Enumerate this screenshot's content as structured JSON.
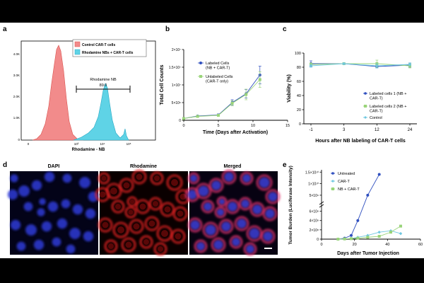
{
  "panels": {
    "a": {
      "letter": "a",
      "legend": [
        "Control CAR-T cells",
        "Rhodamine NBs + CAR-T cells"
      ],
      "legend_colors": [
        "#f28b8b",
        "#5fd3e6"
      ],
      "gate_label": "Rhodamine NB",
      "gate_value": "89.0",
      "y_ticks": [
        "4.0K",
        "3.0K",
        "2.0K",
        "1.0K",
        "0"
      ],
      "x_ticks": [
        "0",
        "10³",
        "10⁴",
        "10⁵"
      ],
      "x_label": "Rhodamine - NB"
    },
    "b": {
      "letter": "b",
      "y_label": "Total Cell Counts",
      "x_label": "Time (Days after Activation)",
      "y_ticks": [
        "0",
        "5×10⁶",
        "1×10⁷",
        "1.5×10⁷",
        "2×10⁷"
      ],
      "x_ticks": [
        "0",
        "5",
        "10",
        "15"
      ],
      "legend": [
        "Labeled Cells (NB + CAR-T)",
        "Unlabeled Cells (CAR-T only)"
      ]
    },
    "c": {
      "letter": "c",
      "y_label": "Viability (%)",
      "x_label": "Hours after NB labeling of CAR-T cells",
      "y_ticks": [
        "0",
        "20",
        "40",
        "60",
        "80",
        "100"
      ],
      "x_ticks": [
        "-1",
        "3",
        "12",
        "24"
      ],
      "legend": [
        "Labeled cells 1 (NB + CAR-T)",
        "Labeled cells 2 (NB + CAR-T)",
        "Control"
      ]
    },
    "d": {
      "letter": "d",
      "titles": [
        "DAPI",
        "Rhodamine",
        "Merged"
      ]
    },
    "e": {
      "letter": "e",
      "y_label": "Tumor Burden (Luciferase Intensity)",
      "x_label": "Days after Tumor Injection",
      "y_ticks_upper": [
        "1.5×10¹⁰",
        "1×10¹⁰",
        "5×10⁹"
      ],
      "y_ticks_lower": [
        "6×10⁸",
        "4×10⁸",
        "2×10⁸",
        "0"
      ],
      "x_ticks": [
        "0",
        "20",
        "40",
        "60"
      ],
      "legend": [
        "Untreated",
        "CAR-T",
        "NB + CAR-T"
      ]
    }
  },
  "chart_data": [
    {
      "panel": "b",
      "type": "line",
      "xlim": [
        0,
        15
      ],
      "ylim": [
        0,
        20000000
      ],
      "series": [
        {
          "name": "Labeled Cells (NB + CAR-T)",
          "color": "#2f4fbf",
          "x": [
            0,
            2,
            5,
            7,
            9,
            11
          ],
          "y": [
            500000,
            1200000,
            1500000,
            5000000,
            7500000,
            12800000
          ],
          "err": [
            0,
            200000,
            300000,
            800000,
            1200000,
            2500000
          ]
        },
        {
          "name": "Unlabeled Cells (CAR-T only)",
          "color": "#9ad47a",
          "x": [
            0,
            2,
            5,
            7,
            9,
            11
          ],
          "y": [
            500000,
            1100000,
            1400000,
            4800000,
            7300000,
            11500000
          ],
          "err": [
            0,
            200000,
            300000,
            700000,
            1500000,
            2200000
          ]
        }
      ]
    },
    {
      "panel": "c",
      "type": "line",
      "categories": [
        "-1",
        "3",
        "12",
        "24"
      ],
      "ylim": [
        0,
        100
      ],
      "series": [
        {
          "name": "Labeled cells 1 (NB + CAR-T)",
          "color": "#2f4fbf",
          "values": [
            85,
            85,
            81,
            83
          ],
          "err": [
            4,
            1,
            2,
            3
          ]
        },
        {
          "name": "Labeled cells 2 (NB + CAR-T)",
          "color": "#9ad47a",
          "values": [
            84,
            85,
            85,
            82
          ],
          "err": [
            2,
            1,
            5,
            3
          ]
        },
        {
          "name": "Control",
          "color": "#6fc7e0",
          "values": [
            82,
            85,
            82,
            84
          ],
          "err": [
            2,
            1,
            3,
            2
          ]
        }
      ]
    },
    {
      "panel": "e",
      "type": "line",
      "xlim": [
        0,
        60
      ],
      "series": [
        {
          "name": "Untreated",
          "color": "#2f4fbf",
          "x": [
            10,
            14,
            18,
            22,
            28,
            35
          ],
          "y": [
            0,
            20000000,
            80000000,
            400000000,
            5000000000,
            14000000000
          ]
        },
        {
          "name": "CAR-T",
          "color": "#6fc7e0",
          "x": [
            10,
            14,
            18,
            22,
            28,
            35,
            42,
            48
          ],
          "y": [
            0,
            5000000,
            15000000,
            40000000,
            80000000,
            150000000,
            180000000,
            120000000
          ]
        },
        {
          "name": "NB + CAR-T",
          "color": "#9ad47a",
          "x": [
            10,
            14,
            18,
            22,
            28,
            35,
            42,
            48
          ],
          "y": [
            0,
            5000000,
            10000000,
            20000000,
            40000000,
            60000000,
            150000000,
            280000000
          ]
        }
      ]
    }
  ]
}
